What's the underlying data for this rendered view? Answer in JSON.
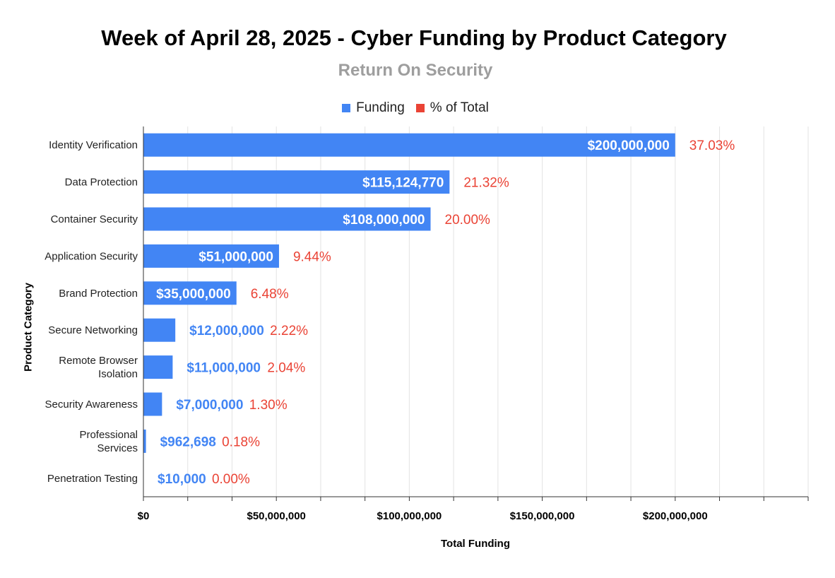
{
  "chart_data": {
    "type": "bar",
    "orientation": "horizontal",
    "title": "Week of April 28, 2025 - Cyber Funding by Product Category",
    "subtitle": "Return On Security",
    "xlabel": "Total Funding",
    "ylabel": "Product Category",
    "xlim": [
      0,
      250000000
    ],
    "x_ticks": [
      "$0",
      "$50,000,000",
      "$100,000,000",
      "$150,000,000",
      "$200,000,000"
    ],
    "x_tick_values": [
      0,
      50000000,
      100000000,
      150000000,
      200000000
    ],
    "legend": [
      {
        "name": "Funding",
        "color": "#4285f4"
      },
      {
        "name": "% of Total",
        "color": "#ea4335"
      }
    ],
    "legend_position": "top",
    "grid": true,
    "categories": [
      [
        "Identity Verification"
      ],
      [
        "Data Protection"
      ],
      [
        "Container Security"
      ],
      [
        "Application Security"
      ],
      [
        "Brand Protection"
      ],
      [
        "Secure Networking"
      ],
      [
        "Remote Browser",
        "Isolation"
      ],
      [
        "Security Awareness"
      ],
      [
        "Professional",
        "Services"
      ],
      [
        "Penetration Testing"
      ]
    ],
    "series": [
      {
        "name": "Funding",
        "values": [
          200000000,
          115124770,
          108000000,
          51000000,
          35000000,
          12000000,
          11000000,
          7000000,
          962698,
          10000
        ],
        "labels": [
          "$200,000,000",
          "$115,124,770",
          "$108,000,000",
          "$51,000,000",
          "$35,000,000",
          "$12,000,000",
          "$11,000,000",
          "$7,000,000",
          "$962,698",
          "$10,000"
        ]
      },
      {
        "name": "% of Total",
        "values": [
          37.03,
          21.32,
          20.0,
          9.44,
          6.48,
          2.22,
          2.04,
          1.3,
          0.18,
          0.0
        ],
        "labels": [
          "37.03%",
          "21.32%",
          "20.00%",
          "9.44%",
          "6.48%",
          "2.22%",
          "2.04%",
          "1.30%",
          "0.18%",
          "0.00%"
        ]
      }
    ]
  }
}
